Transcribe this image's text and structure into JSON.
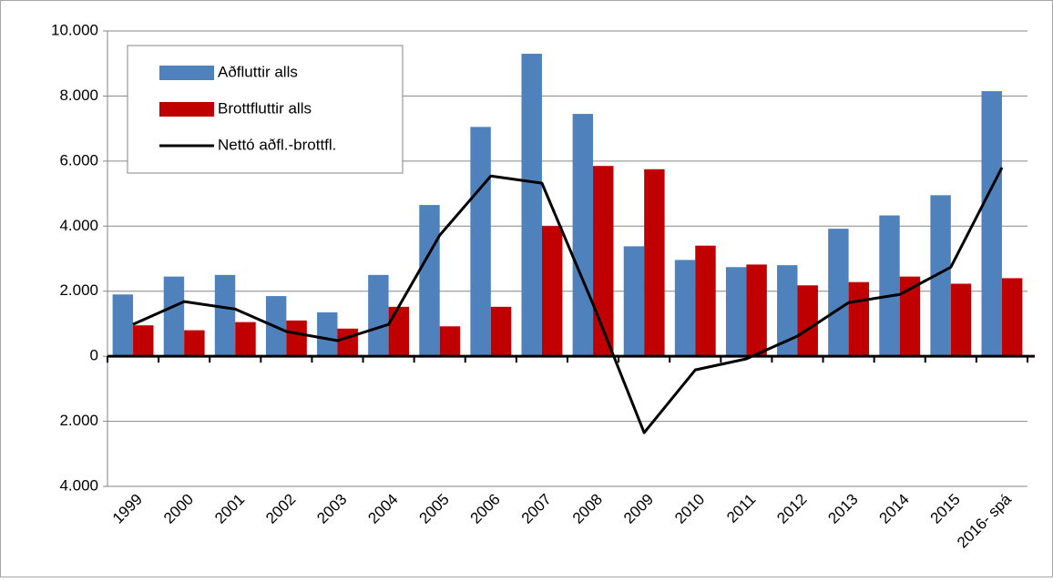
{
  "chart_data": {
    "type": "bar",
    "categories": [
      "1999",
      "2000",
      "2001",
      "2002",
      "2003",
      "2004",
      "2005",
      "2006",
      "2007",
      "2008",
      "2009",
      "2010",
      "2011",
      "2012",
      "2013",
      "2014",
      "2015",
      "2016- spá"
    ],
    "series": [
      {
        "name": "Aðfluttir alls",
        "type": "bar",
        "color": "#4f81bd",
        "values": [
          1900,
          2450,
          2500,
          1850,
          1350,
          2500,
          4650,
          7050,
          9300,
          7450,
          3380,
          2960,
          2740,
          2800,
          3920,
          4330,
          4950,
          8150
        ]
      },
      {
        "name": "Brottfluttir alls",
        "type": "bar",
        "color": "#c00000",
        "values": [
          950,
          800,
          1050,
          1100,
          850,
          1520,
          920,
          1520,
          4000,
          5850,
          5750,
          3400,
          2820,
          2180,
          2280,
          2450,
          2230,
          2400
        ]
      },
      {
        "name": "Nettó aðfl.-brottfl.",
        "type": "line",
        "color": "#000000",
        "values": [
          980,
          1680,
          1450,
          760,
          480,
          980,
          3720,
          5540,
          5320,
          1600,
          -2350,
          -420,
          -80,
          620,
          1650,
          1900,
          2740,
          5800
        ]
      }
    ],
    "ylim": [
      -4000,
      10000
    ],
    "yticks": [
      {
        "value": -4000,
        "label": "4.000"
      },
      {
        "value": -2000,
        "label": "2.000"
      },
      0,
      {
        "value": 2000,
        "label": "2.000"
      },
      {
        "value": 4000,
        "label": "4.000"
      },
      {
        "value": 6000,
        "label": "6.000"
      },
      {
        "value": 8000,
        "label": "8.000"
      },
      {
        "value": 10000,
        "label": "10.000"
      }
    ],
    "negative_label_color": "#e00000",
    "grid": true,
    "legend": "upper-left"
  }
}
